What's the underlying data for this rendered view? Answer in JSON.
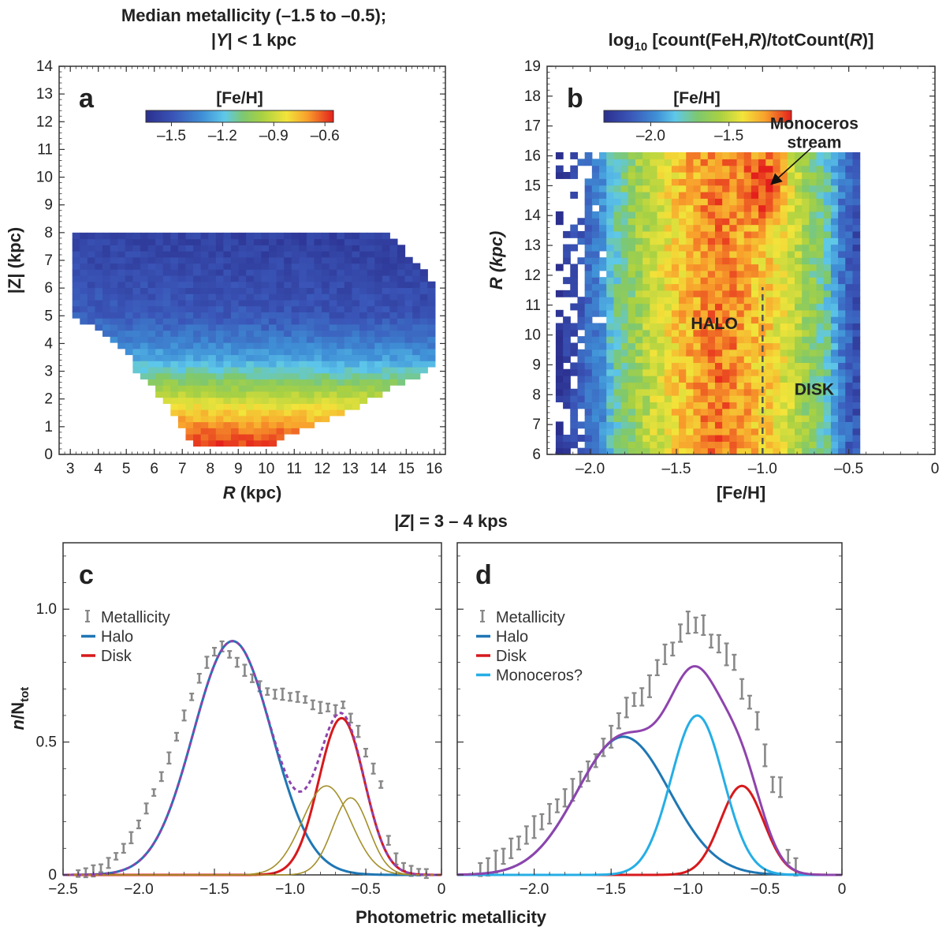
{
  "chart_data": [
    {
      "panel": "a",
      "type": "heatmap",
      "title_line1": "Median metallicity (–1.5 to –0.5);",
      "title_line2_parts": [
        "|",
        "Y",
        "| < 1 kpc"
      ],
      "xlabel_var": "R",
      "xlabel_unit": " (kpc)",
      "ylabel": "|Z| (kpc)",
      "xlim": [
        2.6,
        16.4
      ],
      "ylim": [
        0,
        14
      ],
      "xticks": [
        "3",
        "4",
        "5",
        "6",
        "7",
        "8",
        "9",
        "10",
        "11",
        "12",
        "13",
        "14",
        "15",
        "16"
      ],
      "yticks": [
        "0",
        "1",
        "2",
        "3",
        "4",
        "5",
        "6",
        "7",
        "8",
        "9",
        "10",
        "11",
        "12",
        "13",
        "14"
      ],
      "colorbar": {
        "label": "[Fe/H]",
        "range": [
          -1.65,
          -0.55
        ],
        "ticks": [
          -1.5,
          -1.2,
          -0.9,
          -0.6
        ],
        "ticklabels": [
          "–1.5",
          "–1.2",
          "–0.9",
          "–0.6"
        ]
      },
      "region": {
        "left_edge": [
          [
            0.5,
            7.3
          ],
          [
            1,
            7.0
          ],
          [
            1.5,
            6.6
          ],
          [
            2,
            6.3
          ],
          [
            2.5,
            5.8
          ],
          [
            3,
            5.3
          ],
          [
            3.5,
            5.1
          ],
          [
            4,
            4.6
          ],
          [
            4.5,
            4.1
          ],
          [
            5,
            3.0
          ],
          [
            5.5,
            3.0
          ],
          [
            6,
            3.0
          ],
          [
            7,
            3.0
          ],
          [
            8,
            3.0
          ]
        ],
        "right_edge": [
          [
            0.5,
            10.4
          ],
          [
            1,
            11.6
          ],
          [
            1.5,
            12.7
          ],
          [
            2,
            13.8
          ],
          [
            2.5,
            14.6
          ],
          [
            3,
            15.8
          ],
          [
            3.5,
            16.0
          ],
          [
            4,
            16.0
          ],
          [
            4.5,
            16.0
          ],
          [
            5,
            16.0
          ],
          [
            5.5,
            16.0
          ],
          [
            6,
            16.0
          ],
          [
            6.5,
            15.8
          ],
          [
            7,
            15.3
          ],
          [
            7.5,
            14.8
          ],
          [
            8,
            14.2
          ]
        ],
        "z_max": 8
      },
      "median_profile": {
        "z": [
          0.5,
          1.0,
          1.5,
          2.0,
          2.5,
          3.0,
          3.5,
          4.0,
          4.5,
          5.0,
          6.0,
          7.0,
          8.0
        ],
        "feh": [
          -0.6,
          -0.68,
          -0.78,
          -0.9,
          -1.02,
          -1.15,
          -1.27,
          -1.35,
          -1.42,
          -1.48,
          -1.52,
          -1.55,
          -1.57
        ]
      }
    },
    {
      "panel": "b",
      "type": "heatmap",
      "title_prefix": "log",
      "title_sub": "10",
      "title_parts": [
        " [count(FeH,",
        "R",
        ")/totCount(",
        "R",
        ")]"
      ],
      "xlabel": "[Fe/H]",
      "ylabel": "R (kpc)",
      "xlim": [
        -2.25,
        0
      ],
      "ylim": [
        6,
        19
      ],
      "xticks": [
        -2.0,
        -1.5,
        -1.0,
        -0.5,
        0
      ],
      "xticklabels": [
        "–2.0",
        "–1.5",
        "–1.0",
        "–0.5",
        "0"
      ],
      "yticks": [
        "6",
        "7",
        "8",
        "9",
        "10",
        "11",
        "12",
        "13",
        "14",
        "15",
        "16",
        "17",
        "18",
        "19"
      ],
      "colorbar": {
        "label": "[Fe/H]",
        "range": [
          -2.3,
          -1.1
        ],
        "ticks": [
          -2.0,
          -1.5
        ],
        "ticklabels": [
          "–2.0",
          "–1.5"
        ]
      },
      "data_xrange": [
        -2.2,
        -0.43
      ],
      "data_yrange": [
        6.0,
        16.0
      ],
      "profile_peak": -1.25,
      "monoceros_peak": {
        "feh": -0.98,
        "r": 15.0
      },
      "dashed_line_feh": -1.0,
      "dashed_line_r": [
        6.0,
        11.6
      ],
      "annotations": {
        "halo": {
          "text": "HALO",
          "feh": -1.28,
          "r": 10.2
        },
        "disk": {
          "text": "DISK",
          "feh": -0.7,
          "r": 8.0
        },
        "monoceros_line1": "Monoceros",
        "monoceros_line2": "stream",
        "monoceros_text_pos": {
          "feh": -0.7,
          "r": 16.9
        },
        "arrow_from": {
          "feh": -0.72,
          "r": 16.25
        },
        "arrow_to": {
          "feh": -0.95,
          "r": 15.05
        }
      }
    },
    {
      "panel": "c",
      "type": "line",
      "shared_title_parts": [
        "|",
        "Z",
        "| = 3 – 4 kps"
      ],
      "shared_xlabel": "Photometric metallicity",
      "ylabel_var": "n",
      "ylabel_rest": "/N",
      "ylabel_sub": "tot",
      "xlim": [
        -2.5,
        0
      ],
      "ylim": [
        0,
        1.25
      ],
      "xticks": [
        -2.5,
        -2.0,
        -1.5,
        -1.0,
        -0.5,
        0
      ],
      "xticklabels": [
        "−2.5",
        "−2.0",
        "−1.5",
        "−1.0",
        "−0.5",
        "0"
      ],
      "yticks": [
        0,
        0.5,
        1.0
      ],
      "yticklabels": [
        "0",
        "0.5",
        "1.0"
      ],
      "legend": [
        "Metallicity",
        "Halo",
        "Disk"
      ],
      "components": [
        {
          "name": "Halo",
          "color": "#1f77b4",
          "amp": 0.88,
          "mu": -1.38,
          "sigma": 0.26
        },
        {
          "name": "Disk",
          "color": "#d7191c",
          "amp": 0.59,
          "mu": -0.66,
          "sigma": 0.15
        },
        {
          "name": "",
          "color": "#a38f2a",
          "amp": 0.335,
          "mu": -0.76,
          "sigma": 0.16
        },
        {
          "name": "",
          "color": "#a38f2a",
          "amp": 0.29,
          "mu": -0.6,
          "sigma": 0.12
        }
      ],
      "sum_color": "#8e44ad",
      "points": {
        "x": [
          -2.4,
          -2.35,
          -2.3,
          -2.25,
          -2.2,
          -2.15,
          -2.1,
          -2.05,
          -2.0,
          -1.95,
          -1.9,
          -1.85,
          -1.8,
          -1.75,
          -1.7,
          -1.65,
          -1.6,
          -1.55,
          -1.5,
          -1.45,
          -1.4,
          -1.35,
          -1.3,
          -1.25,
          -1.2,
          -1.15,
          -1.1,
          -1.05,
          -1.0,
          -0.95,
          -0.9,
          -0.85,
          -0.8,
          -0.75,
          -0.7,
          -0.65,
          -0.6,
          -0.55,
          -0.5,
          -0.45,
          -0.4,
          -0.35,
          -0.3,
          -0.25,
          -0.2,
          -0.15,
          -0.1
        ],
        "y": [
          0.005,
          0.008,
          0.015,
          0.025,
          0.045,
          0.07,
          0.1,
          0.14,
          0.19,
          0.25,
          0.31,
          0.37,
          0.44,
          0.52,
          0.6,
          0.67,
          0.74,
          0.8,
          0.84,
          0.86,
          0.83,
          0.8,
          0.77,
          0.74,
          0.71,
          0.69,
          0.68,
          0.68,
          0.67,
          0.67,
          0.66,
          0.64,
          0.63,
          0.63,
          0.62,
          0.64,
          0.59,
          0.54,
          0.46,
          0.4,
          0.34,
          0.13,
          0.06,
          0.03,
          0.015,
          0.01,
          0.005
        ],
        "err": 0.018
      }
    },
    {
      "panel": "d",
      "type": "line",
      "xlim": [
        -2.5,
        0
      ],
      "ylim": [
        0,
        1.25
      ],
      "xticks": [
        -2.0,
        -1.5,
        -1.0,
        -0.5,
        0
      ],
      "xticklabels": [
        "−2.0",
        "−1.5",
        "−1.0",
        "−0.5",
        "0"
      ],
      "legend": [
        "Metallicity",
        "Halo",
        "Disk",
        "Monoceros?"
      ],
      "components": [
        {
          "name": "Halo",
          "color": "#1f77b4",
          "amp": 0.52,
          "mu": -1.42,
          "sigma": 0.3
        },
        {
          "name": "Disk",
          "color": "#d7191c",
          "amp": 0.335,
          "mu": -0.65,
          "sigma": 0.14
        },
        {
          "name": "Monoceros?",
          "color": "#25aee6",
          "amp": 0.6,
          "mu": -0.94,
          "sigma": 0.17
        }
      ],
      "sum_color": "#8e44ad",
      "points": {
        "x": [
          -2.35,
          -2.3,
          -2.25,
          -2.2,
          -2.15,
          -2.1,
          -2.05,
          -2.0,
          -1.95,
          -1.9,
          -1.85,
          -1.8,
          -1.75,
          -1.7,
          -1.65,
          -1.6,
          -1.55,
          -1.5,
          -1.45,
          -1.4,
          -1.35,
          -1.3,
          -1.25,
          -1.2,
          -1.15,
          -1.1,
          -1.05,
          -1.0,
          -0.95,
          -0.9,
          -0.85,
          -0.8,
          -0.75,
          -0.7,
          -0.65,
          -0.6,
          -0.55,
          -0.5,
          -0.45,
          -0.4,
          -0.35,
          -0.3
        ],
        "y": [
          0.02,
          0.03,
          0.05,
          0.07,
          0.1,
          0.12,
          0.15,
          0.18,
          0.2,
          0.23,
          0.26,
          0.29,
          0.32,
          0.36,
          0.39,
          0.43,
          0.48,
          0.52,
          0.58,
          0.63,
          0.66,
          0.67,
          0.71,
          0.78,
          0.83,
          0.85,
          0.91,
          0.95,
          0.94,
          0.94,
          0.88,
          0.87,
          0.83,
          0.8,
          0.7,
          0.65,
          0.58,
          0.45,
          0.34,
          0.33,
          0.07,
          0.03
        ],
        "err": 0.035
      }
    }
  ]
}
